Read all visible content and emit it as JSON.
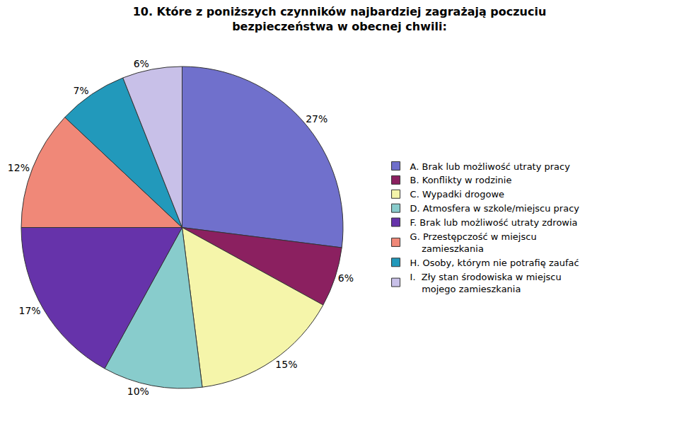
{
  "chart_data": {
    "type": "pie",
    "title": "10. Które z poniższych czynników najbardziej zagrażają poczuciu\nbezpieczeństwa w obecnej chwili:",
    "categories": [
      "A. Brak lub możliwość utraty pracy",
      "B. Konflikty w rodzinie",
      "C. Wypadki drogowe",
      "D. Atmosfera w szkole/miejscu pracy",
      "F. Brak lub możliwość utraty zdrowia",
      "G. Przestępczość w miejscu\n    zamieszkania",
      "H. Osoby, którym nie potrafię zaufać",
      "I.  Zły stan środowiska w miejscu\n    mojego zamieszkania"
    ],
    "values": [
      27,
      6,
      15,
      10,
      17,
      12,
      7,
      6
    ],
    "value_labels": [
      "27%",
      "6%",
      "15%",
      "10%",
      "17%",
      "12%",
      "7%",
      "6%"
    ],
    "colors": [
      "#7070cc",
      "#8b2060",
      "#f5f5aa",
      "#88cccc",
      "#6633aa",
      "#f08878",
      "#2299bb",
      "#c8c0e8"
    ],
    "data_labels": true,
    "legend": "right"
  }
}
